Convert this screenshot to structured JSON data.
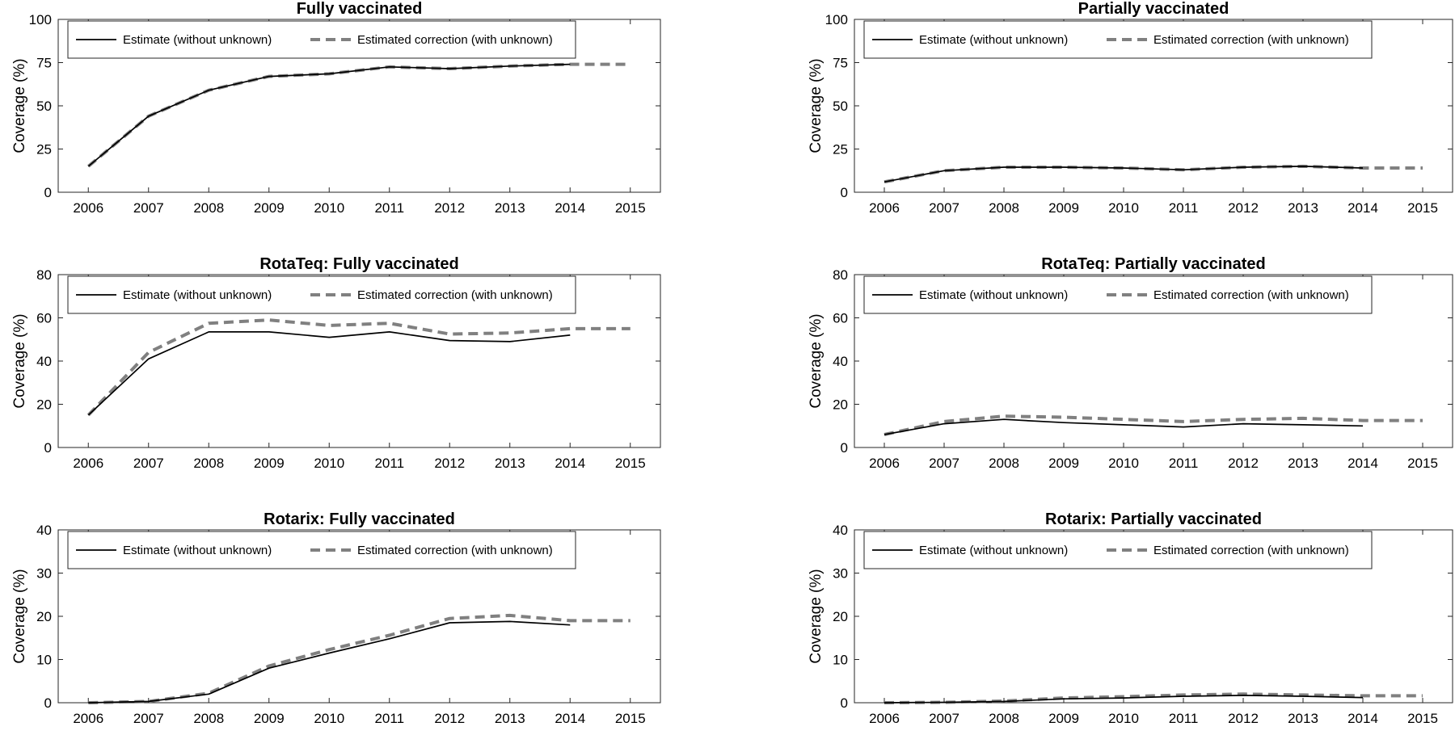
{
  "chart_data": [
    {
      "type": "line",
      "title": "Fully vaccinated",
      "ylabel": "Coverage (%)",
      "xlabel": "",
      "x": [
        2006,
        2007,
        2008,
        2009,
        2010,
        2011,
        2012,
        2013,
        2014,
        2015
      ],
      "xlim": [
        2005.5,
        2015.5
      ],
      "ylim": [
        0,
        100
      ],
      "yticks": [
        0,
        25,
        50,
        75,
        100
      ],
      "legend": "top-left",
      "series": [
        {
          "name": "Estimate (without unknown)",
          "style": "solid",
          "color": "#000000",
          "x": [
            2006,
            2007,
            2008,
            2009,
            2010,
            2011,
            2012,
            2013,
            2014
          ],
          "values": [
            15,
            44,
            59,
            67,
            68.5,
            72.5,
            71.5,
            73,
            74
          ]
        },
        {
          "name": "Estimated correction (with unknown)",
          "style": "dashed",
          "color": "#808080",
          "x": [
            2006,
            2007,
            2008,
            2009,
            2010,
            2011,
            2012,
            2013,
            2014,
            2015
          ],
          "values": [
            15,
            44,
            59,
            67,
            68.5,
            72.5,
            71.5,
            73,
            74,
            74
          ]
        }
      ]
    },
    {
      "type": "line",
      "title": "Partially vaccinated",
      "ylabel": "Coverage (%)",
      "xlabel": "",
      "x": [
        2006,
        2007,
        2008,
        2009,
        2010,
        2011,
        2012,
        2013,
        2014,
        2015
      ],
      "xlim": [
        2005.5,
        2015.5
      ],
      "ylim": [
        0,
        100
      ],
      "yticks": [
        0,
        25,
        50,
        75,
        100
      ],
      "legend": "top-left",
      "series": [
        {
          "name": "Estimate (without unknown)",
          "style": "solid",
          "color": "#000000",
          "x": [
            2006,
            2007,
            2008,
            2009,
            2010,
            2011,
            2012,
            2013,
            2014
          ],
          "values": [
            6,
            12.5,
            14.5,
            14.5,
            14,
            13,
            14.5,
            15,
            14
          ]
        },
        {
          "name": "Estimated correction (with unknown)",
          "style": "dashed",
          "color": "#808080",
          "x": [
            2006,
            2007,
            2008,
            2009,
            2010,
            2011,
            2012,
            2013,
            2014,
            2015
          ],
          "values": [
            6,
            12.5,
            14.5,
            14.5,
            14,
            13,
            14.5,
            15,
            14,
            14
          ]
        }
      ]
    },
    {
      "type": "line",
      "title": "RotaTeq: Fully vaccinated",
      "ylabel": "Coverage (%)",
      "xlabel": "",
      "x": [
        2006,
        2007,
        2008,
        2009,
        2010,
        2011,
        2012,
        2013,
        2014,
        2015
      ],
      "xlim": [
        2005.5,
        2015.5
      ],
      "ylim": [
        0,
        80
      ],
      "yticks": [
        0,
        20,
        40,
        60,
        80
      ],
      "legend": "top-left",
      "series": [
        {
          "name": "Estimate (without unknown)",
          "style": "solid",
          "color": "#000000",
          "x": [
            2006,
            2007,
            2008,
            2009,
            2010,
            2011,
            2012,
            2013,
            2014
          ],
          "values": [
            15,
            41,
            53.5,
            53.5,
            51,
            53.5,
            49.5,
            49,
            52
          ]
        },
        {
          "name": "Estimated correction (with unknown)",
          "style": "dashed",
          "color": "#808080",
          "x": [
            2006,
            2007,
            2008,
            2009,
            2010,
            2011,
            2012,
            2013,
            2014,
            2015
          ],
          "values": [
            15,
            44,
            57.5,
            59,
            56.5,
            57.5,
            52.5,
            53,
            55,
            55
          ]
        }
      ]
    },
    {
      "type": "line",
      "title": "RotaTeq: Partially vaccinated",
      "ylabel": "Coverage (%)",
      "xlabel": "",
      "x": [
        2006,
        2007,
        2008,
        2009,
        2010,
        2011,
        2012,
        2013,
        2014,
        2015
      ],
      "xlim": [
        2005.5,
        2015.5
      ],
      "ylim": [
        0,
        80
      ],
      "yticks": [
        0,
        20,
        40,
        60,
        80
      ],
      "legend": "top-left",
      "series": [
        {
          "name": "Estimate (without unknown)",
          "style": "solid",
          "color": "#000000",
          "x": [
            2006,
            2007,
            2008,
            2009,
            2010,
            2011,
            2012,
            2013,
            2014
          ],
          "values": [
            6,
            11,
            13,
            11.5,
            10.5,
            9.5,
            11,
            10.5,
            10
          ]
        },
        {
          "name": "Estimated correction (with unknown)",
          "style": "dashed",
          "color": "#808080",
          "x": [
            2006,
            2007,
            2008,
            2009,
            2010,
            2011,
            2012,
            2013,
            2014,
            2015
          ],
          "values": [
            6,
            12,
            14.5,
            14,
            13,
            12,
            13,
            13.5,
            12.5,
            12.5
          ]
        }
      ]
    },
    {
      "type": "line",
      "title": "Rotarix: Fully vaccinated",
      "ylabel": "Coverage (%)",
      "xlabel": "",
      "x": [
        2006,
        2007,
        2008,
        2009,
        2010,
        2011,
        2012,
        2013,
        2014,
        2015
      ],
      "xlim": [
        2005.5,
        2015.5
      ],
      "ylim": [
        0,
        40
      ],
      "yticks": [
        0,
        10,
        20,
        30,
        40
      ],
      "legend": "top-left",
      "series": [
        {
          "name": "Estimate (without unknown)",
          "style": "solid",
          "color": "#000000",
          "x": [
            2006,
            2007,
            2008,
            2009,
            2010,
            2011,
            2012,
            2013,
            2014
          ],
          "values": [
            0,
            0.3,
            2,
            8,
            11.5,
            14.8,
            18.5,
            18.8,
            18
          ]
        },
        {
          "name": "Estimated correction (with unknown)",
          "style": "dashed",
          "color": "#808080",
          "x": [
            2006,
            2007,
            2008,
            2009,
            2010,
            2011,
            2012,
            2013,
            2014,
            2015
          ],
          "values": [
            0,
            0.3,
            2.2,
            8.5,
            12.3,
            15.6,
            19.5,
            20.2,
            19,
            19
          ]
        }
      ]
    },
    {
      "type": "line",
      "title": "Rotarix: Partially vaccinated",
      "ylabel": "Coverage (%)",
      "xlabel": "",
      "x": [
        2006,
        2007,
        2008,
        2009,
        2010,
        2011,
        2012,
        2013,
        2014,
        2015
      ],
      "xlim": [
        2005.5,
        2015.5
      ],
      "ylim": [
        0,
        40
      ],
      "yticks": [
        0,
        10,
        20,
        30,
        40
      ],
      "legend": "top-left",
      "series": [
        {
          "name": "Estimate (without unknown)",
          "style": "solid",
          "color": "#000000",
          "x": [
            2006,
            2007,
            2008,
            2009,
            2010,
            2011,
            2012,
            2013,
            2014
          ],
          "values": [
            0,
            0.1,
            0.3,
            0.9,
            1.1,
            1.5,
            1.7,
            1.5,
            1.2
          ]
        },
        {
          "name": "Estimated correction (with unknown)",
          "style": "dashed",
          "color": "#808080",
          "x": [
            2006,
            2007,
            2008,
            2009,
            2010,
            2011,
            2012,
            2013,
            2014,
            2015
          ],
          "values": [
            0,
            0.1,
            0.4,
            1.1,
            1.4,
            1.8,
            2,
            1.8,
            1.6,
            1.6
          ]
        }
      ]
    }
  ]
}
